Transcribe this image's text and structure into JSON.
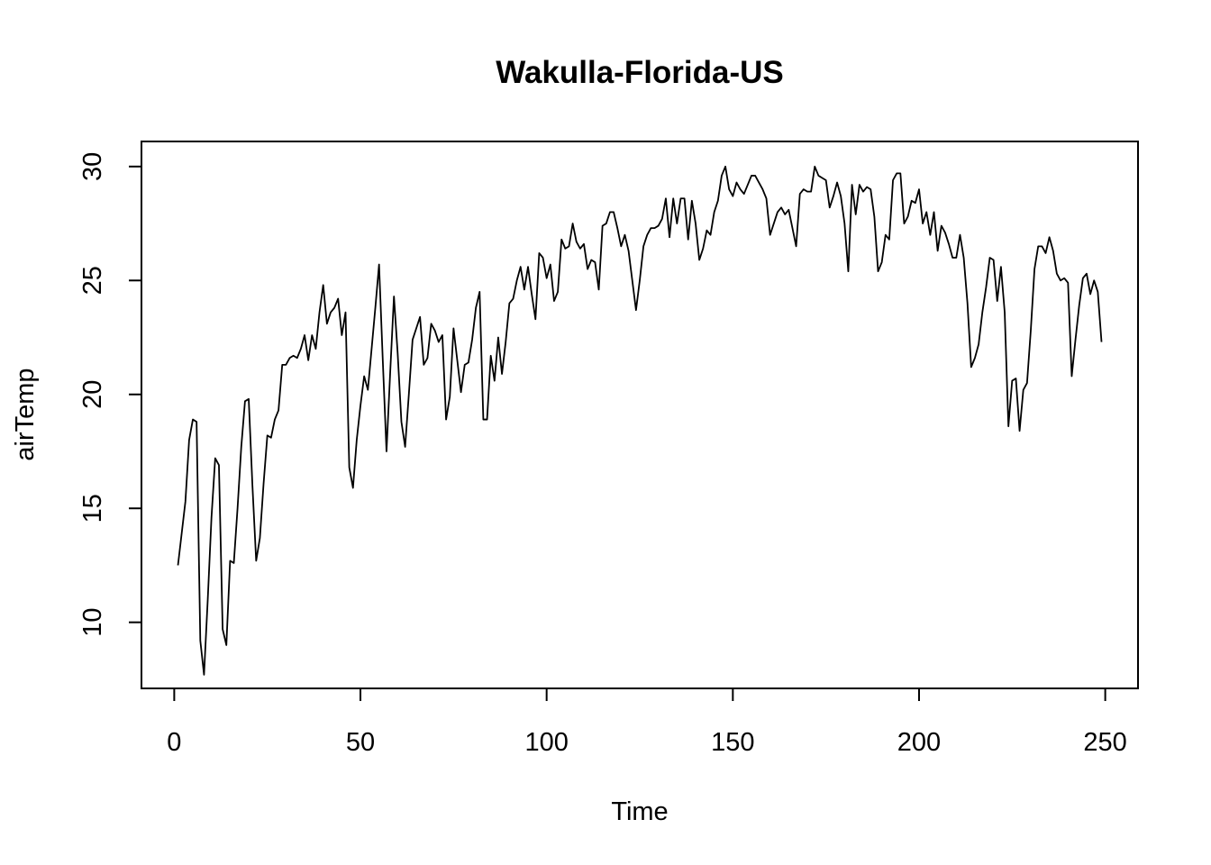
{
  "chart_data": {
    "type": "line",
    "title": "Wakulla-Florida-US",
    "xlabel": "Time",
    "ylabel": "airTemp",
    "xlim": [
      -8.8,
      258.8
    ],
    "ylim": [
      7.1,
      31.1
    ],
    "x_ticks": [
      0,
      50,
      100,
      150,
      200,
      250
    ],
    "y_ticks": [
      10,
      15,
      20,
      25,
      30
    ],
    "x_tick_labels": [
      "0",
      "50",
      "100",
      "150",
      "200",
      "250"
    ],
    "y_tick_labels": [
      "10",
      "15",
      "20",
      "25",
      "30"
    ],
    "grid": false,
    "line_color": "#000000",
    "x_start": 1,
    "series": [
      {
        "values": [
          12.5,
          13.9,
          15.3,
          18.0,
          18.9,
          18.8,
          9.2,
          7.7,
          11.0,
          14.6,
          17.2,
          16.9,
          9.7,
          9.0,
          12.7,
          12.6,
          15.0,
          17.7,
          19.7,
          19.8,
          16.0,
          12.7,
          13.7,
          16.1,
          18.2,
          18.1,
          18.9,
          19.3,
          21.3,
          21.3,
          21.6,
          21.7,
          21.6,
          22.0,
          22.6,
          21.5,
          22.6,
          22.0,
          23.6,
          24.8,
          23.1,
          23.6,
          23.8,
          24.2,
          22.6,
          23.6,
          16.8,
          15.9,
          18.0,
          19.5,
          20.8,
          20.2,
          22.0,
          23.8,
          25.7,
          21.5,
          17.5,
          21.0,
          24.3,
          21.8,
          18.8,
          17.7,
          20.0,
          22.4,
          22.9,
          23.4,
          21.3,
          21.6,
          23.1,
          22.8,
          22.3,
          22.6,
          18.9,
          19.9,
          22.9,
          21.5,
          20.1,
          21.3,
          21.4,
          22.4,
          23.8,
          24.5,
          18.9,
          18.9,
          21.7,
          20.6,
          22.5,
          20.9,
          22.3,
          24.0,
          24.2,
          25.0,
          25.6,
          24.6,
          25.6,
          24.4,
          23.3,
          26.2,
          26.0,
          25.1,
          25.7,
          24.1,
          24.5,
          26.8,
          26.4,
          26.5,
          27.5,
          26.7,
          26.4,
          26.6,
          25.5,
          25.9,
          25.8,
          24.6,
          27.4,
          27.5,
          28.0,
          28.0,
          27.3,
          26.5,
          27.0,
          26.3,
          25.0,
          23.7,
          25.0,
          26.5,
          27.0,
          27.3,
          27.3,
          27.4,
          27.7,
          28.6,
          26.9,
          28.6,
          27.5,
          28.6,
          28.6,
          26.8,
          28.5,
          27.5,
          25.9,
          26.4,
          27.2,
          27.0,
          28.0,
          28.5,
          29.6,
          30.0,
          29.0,
          28.7,
          29.3,
          29.0,
          28.8,
          29.2,
          29.6,
          29.6,
          29.3,
          29.0,
          28.6,
          27.0,
          27.5,
          28.0,
          28.2,
          27.9,
          28.1,
          27.3,
          26.5,
          28.8,
          29.0,
          28.9,
          28.9,
          30.0,
          29.6,
          29.5,
          29.4,
          28.2,
          28.7,
          29.3,
          28.7,
          27.5,
          25.4,
          29.2,
          27.9,
          29.2,
          28.9,
          29.1,
          29.0,
          27.8,
          25.4,
          25.8,
          27.0,
          26.8,
          29.4,
          29.7,
          29.7,
          27.5,
          27.8,
          28.5,
          28.4,
          29.0,
          27.5,
          28.0,
          27.0,
          28.0,
          26.3,
          27.4,
          27.1,
          26.6,
          26.0,
          26.0,
          27.0,
          26.0,
          24.0,
          21.2,
          21.6,
          22.2,
          23.6,
          24.7,
          26.0,
          25.9,
          24.1,
          25.6,
          23.6,
          18.6,
          20.6,
          20.7,
          18.4,
          20.2,
          20.5,
          22.8,
          25.5,
          26.5,
          26.5,
          26.2,
          26.9,
          26.3,
          25.3,
          25.0,
          25.1,
          24.9,
          20.8,
          22.4,
          23.9,
          25.1,
          25.3,
          24.4,
          25.0,
          24.5,
          22.3
        ]
      }
    ]
  }
}
